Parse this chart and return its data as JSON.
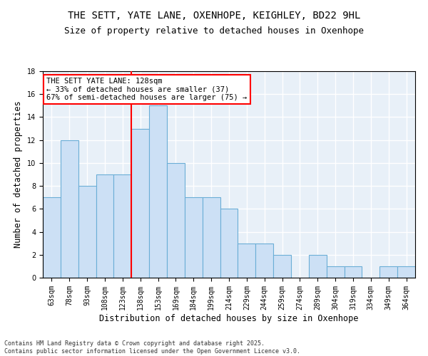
{
  "title": "THE SETT, YATE LANE, OXENHOPE, KEIGHLEY, BD22 9HL",
  "subtitle": "Size of property relative to detached houses in Oxenhope",
  "xlabel": "Distribution of detached houses by size in Oxenhope",
  "ylabel": "Number of detached properties",
  "categories": [
    "63sqm",
    "78sqm",
    "93sqm",
    "108sqm",
    "123sqm",
    "138sqm",
    "153sqm",
    "169sqm",
    "184sqm",
    "199sqm",
    "214sqm",
    "229sqm",
    "244sqm",
    "259sqm",
    "274sqm",
    "289sqm",
    "304sqm",
    "319sqm",
    "334sqm",
    "349sqm",
    "364sqm"
  ],
  "values": [
    7,
    12,
    8,
    9,
    9,
    13,
    15,
    10,
    7,
    7,
    6,
    3,
    3,
    2,
    0,
    2,
    1,
    1,
    0,
    1,
    1
  ],
  "bar_color": "#cce0f5",
  "bar_edge_color": "#6baed6",
  "vline_x": 4.5,
  "vline_color": "red",
  "annotation_text": "THE SETT YATE LANE: 128sqm\n← 33% of detached houses are smaller (37)\n67% of semi-detached houses are larger (75) →",
  "annotation_box_color": "white",
  "annotation_box_edge": "red",
  "ylim": [
    0,
    18
  ],
  "yticks": [
    0,
    2,
    4,
    6,
    8,
    10,
    12,
    14,
    16,
    18
  ],
  "background_color": "#e8f0f8",
  "grid_color": "white",
  "footer": "Contains HM Land Registry data © Crown copyright and database right 2025.\nContains public sector information licensed under the Open Government Licence v3.0.",
  "title_fontsize": 10,
  "subtitle_fontsize": 9,
  "xlabel_fontsize": 8.5,
  "ylabel_fontsize": 8.5,
  "tick_fontsize": 7,
  "annotation_fontsize": 7.5,
  "footer_fontsize": 6
}
